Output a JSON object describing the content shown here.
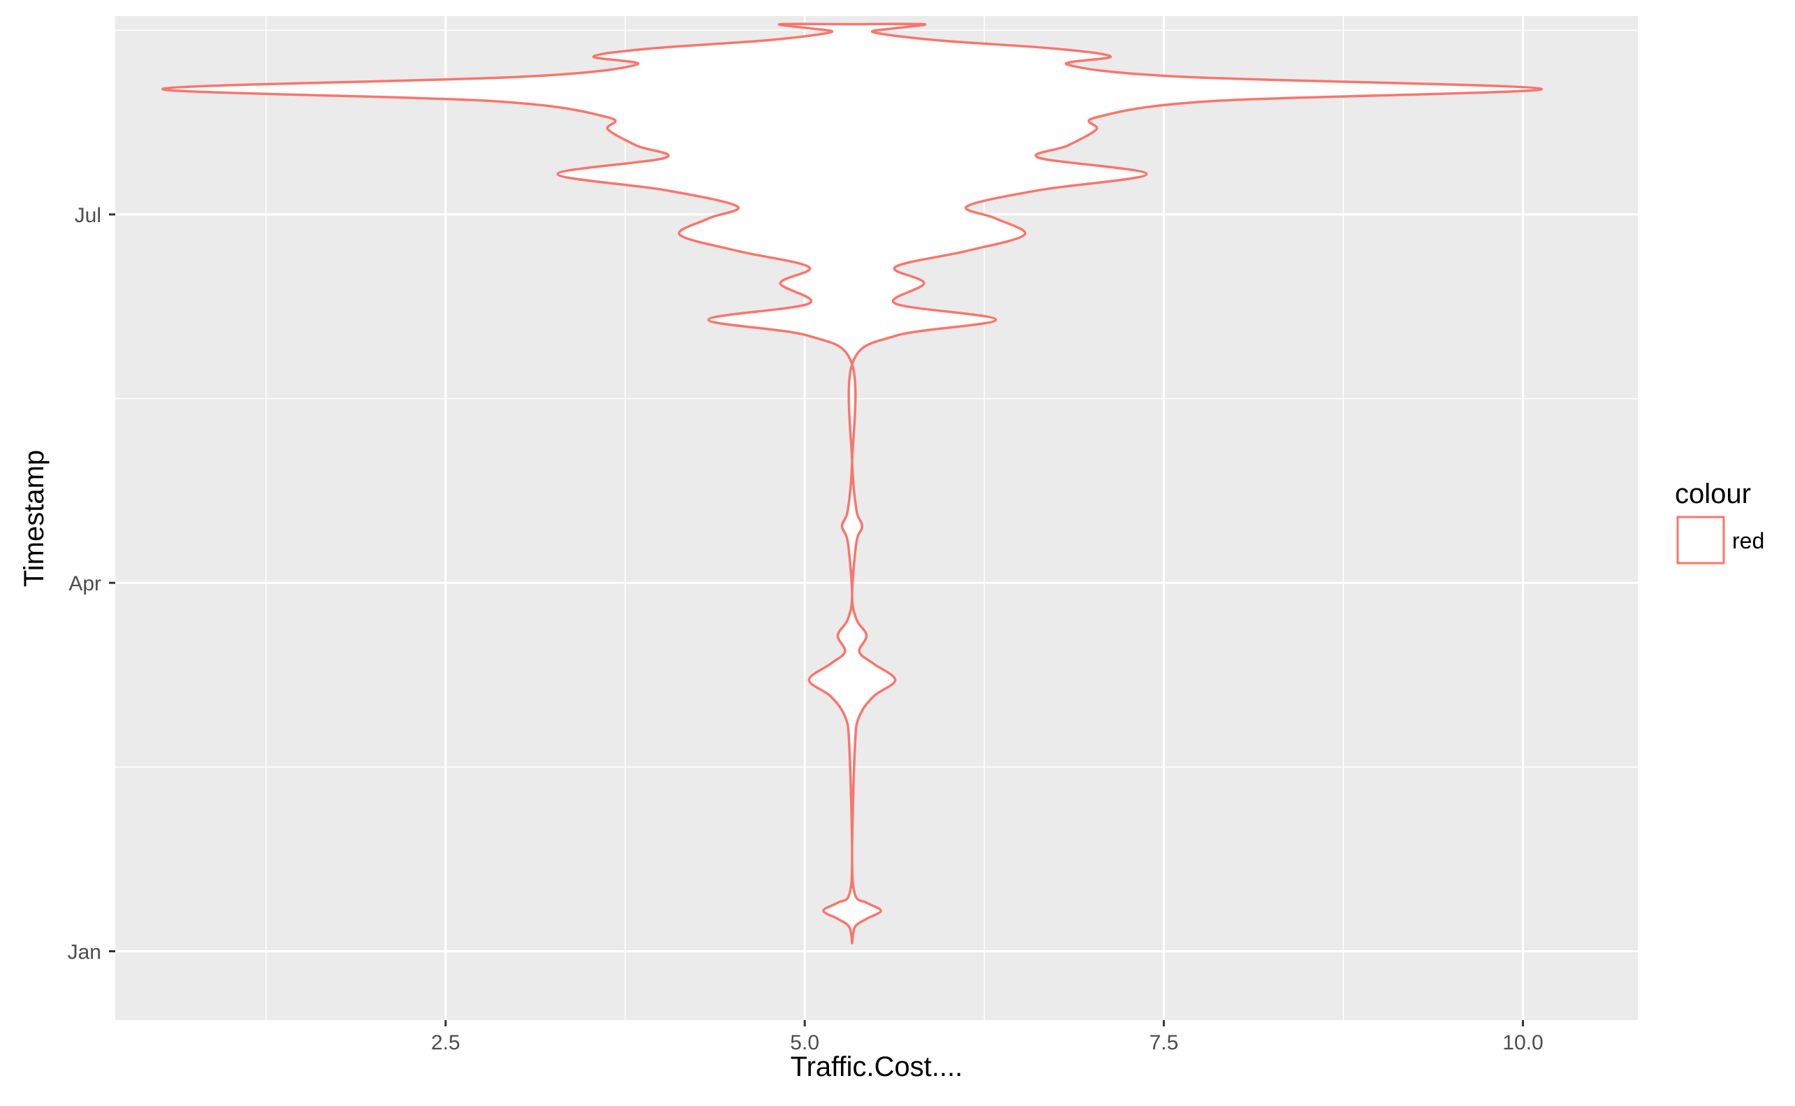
{
  "chart_data": {
    "type": "violin",
    "xlabel": "Traffic.Cost....",
    "ylabel": "Timestamp",
    "x_ticks": [
      2.5,
      5.0,
      7.5,
      10.0
    ],
    "x_tick_labels": [
      "2.5",
      "5.0",
      "7.5",
      "10.0"
    ],
    "xlim": [
      0.2,
      10.8
    ],
    "y_ticks": [
      "Jan 1",
      "Apr 1",
      "Jul 1"
    ],
    "y_tick_labels": [
      "Jan",
      "Apr",
      "Jul"
    ],
    "ylim": [
      "Dec 15",
      "Aug 19"
    ],
    "grid": true,
    "legend": {
      "title": "colour",
      "position": "right",
      "entries": [
        {
          "label": "red",
          "color": "#F8766D"
        }
      ]
    },
    "series": [
      {
        "name": "red",
        "color": "#F8766D",
        "center": 5.33,
        "profile": [
          {
            "date": "Jan 3",
            "half_width": 0.0
          },
          {
            "date": "Jan 7",
            "half_width": 0.02
          },
          {
            "date": "Jan 9",
            "half_width": 0.1
          },
          {
            "date": "Jan 11",
            "half_width": 0.2
          },
          {
            "date": "Jan 13",
            "half_width": 0.1
          },
          {
            "date": "Jan 15",
            "half_width": 0.02
          },
          {
            "date": "Jan 25",
            "half_width": 0.0
          },
          {
            "date": "Feb 21",
            "half_width": 0.02
          },
          {
            "date": "Feb 28",
            "half_width": 0.05
          },
          {
            "date": "Mar 4",
            "half_width": 0.15
          },
          {
            "date": "Mar 8",
            "half_width": 0.3
          },
          {
            "date": "Mar 12",
            "half_width": 0.15
          },
          {
            "date": "Mar 15",
            "half_width": 0.05
          },
          {
            "date": "Mar 19",
            "half_width": 0.1
          },
          {
            "date": "Mar 23",
            "half_width": 0.03
          },
          {
            "date": "Mar 29",
            "half_width": 0.0
          },
          {
            "date": "Apr 11",
            "half_width": 0.03
          },
          {
            "date": "Apr 15",
            "half_width": 0.07
          },
          {
            "date": "Apr 19",
            "half_width": 0.03
          },
          {
            "date": "May 1",
            "half_width": 0.0
          },
          {
            "date": "May 25",
            "half_width": 0.0
          },
          {
            "date": "Jun 1",
            "half_width": 0.3
          },
          {
            "date": "Jun 5",
            "half_width": 1.0
          },
          {
            "date": "Jun 9",
            "half_width": 0.3
          },
          {
            "date": "Jun 14",
            "half_width": 0.5
          },
          {
            "date": "Jun 18",
            "half_width": 0.3
          },
          {
            "date": "Jun 22",
            "half_width": 0.8
          },
          {
            "date": "Jun 26",
            "half_width": 1.2
          },
          {
            "date": "Jun 30",
            "half_width": 1.0
          },
          {
            "date": "Jul 3",
            "half_width": 0.8
          },
          {
            "date": "Jul 7",
            "half_width": 1.3
          },
          {
            "date": "Jul 11",
            "half_width": 2.05
          },
          {
            "date": "Jul 15",
            "half_width": 1.3
          },
          {
            "date": "Jul 18",
            "half_width": 1.5
          },
          {
            "date": "Jul 22",
            "half_width": 1.7
          },
          {
            "date": "Jul 25",
            "half_width": 1.7
          },
          {
            "date": "Jul 29",
            "half_width": 2.5
          },
          {
            "date": "Aug 1",
            "half_width": 4.8
          },
          {
            "date": "Aug 4",
            "half_width": 2.3
          },
          {
            "date": "Aug 7",
            "half_width": 1.5
          },
          {
            "date": "Aug 9",
            "half_width": 1.8
          },
          {
            "date": "Aug 11",
            "half_width": 1.4
          },
          {
            "date": "Aug 13",
            "half_width": 0.6
          },
          {
            "date": "Aug 15",
            "half_width": 0.15
          },
          {
            "date": "Aug 16",
            "half_width": 0.3
          },
          {
            "date": "Aug 17",
            "half_width": 0.5
          },
          {
            "date": "Aug 17",
            "half_width": 0.0
          }
        ]
      }
    ]
  }
}
